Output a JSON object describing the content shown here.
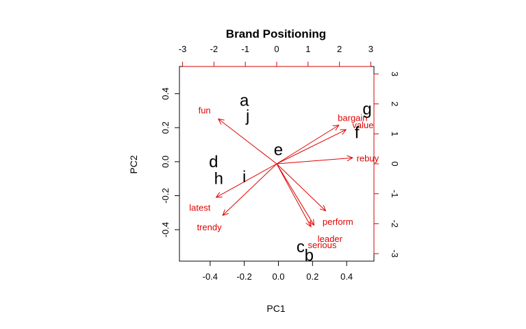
{
  "chart_data": {
    "type": "scatter",
    "subtype": "biplot",
    "title": "Brand Positioning",
    "xlabel": "PC1",
    "ylabel": "PC2",
    "xlim": [
      -0.58,
      0.56
    ],
    "ylim": [
      -0.585,
      0.56
    ],
    "x_ticks": [
      "-0.4",
      "-0.2",
      "0.0",
      "0.2",
      "0.4"
    ],
    "x_tick_values": [
      -0.4,
      -0.2,
      0.0,
      0.2,
      0.4
    ],
    "y_ticks": [
      "-0.4",
      "-0.2",
      "0.0",
      "0.2",
      "0.4"
    ],
    "y_tick_values": [
      -0.4,
      -0.2,
      0.0,
      0.2,
      0.4
    ],
    "top_ticks": [
      "-3",
      "-2",
      "-1",
      "0",
      "1",
      "2",
      "3"
    ],
    "top_tick_values": [
      -3,
      -2,
      -1,
      0,
      1,
      2,
      3
    ],
    "right_ticks": [
      "-3",
      "-2",
      "-1",
      "0",
      "1",
      "2",
      "3"
    ],
    "right_tick_values": [
      -3,
      -2,
      -1,
      0,
      1,
      2,
      3
    ],
    "top_xlim": [
      -3.1,
      3.1
    ],
    "right_ylim": [
      -3.25,
      3.25
    ],
    "point_color": "#000000",
    "loading_color": "#e00000",
    "points": [
      {
        "label": "a",
        "x": -0.2,
        "y": 0.36
      },
      {
        "label": "j",
        "x": -0.18,
        "y": 0.27
      },
      {
        "label": "g",
        "x": 0.52,
        "y": 0.31
      },
      {
        "label": "f",
        "x": 0.46,
        "y": 0.17
      },
      {
        "label": "e",
        "x": 0.0,
        "y": 0.07
      },
      {
        "label": "d",
        "x": -0.38,
        "y": 0.0
      },
      {
        "label": "h",
        "x": -0.35,
        "y": -0.1
      },
      {
        "label": "i",
        "x": -0.2,
        "y": -0.09
      },
      {
        "label": "c",
        "x": 0.13,
        "y": -0.5
      },
      {
        "label": "b",
        "x": 0.18,
        "y": -0.55
      }
    ],
    "loadings": [
      {
        "label": "fun",
        "x": -1.86,
        "y": 1.5,
        "label_x": -2.3,
        "label_y": 1.8
      },
      {
        "label": "bargain",
        "x": 1.98,
        "y": 1.29,
        "label_x": 2.42,
        "label_y": 1.55
      },
      {
        "label": "value",
        "x": 2.21,
        "y": 1.14,
        "label_x": 2.75,
        "label_y": 1.3
      },
      {
        "label": "rebuy",
        "x": 2.42,
        "y": 0.2,
        "label_x": 2.9,
        "label_y": 0.2
      },
      {
        "label": "latest",
        "x": -1.93,
        "y": -1.12,
        "label_x": -2.45,
        "label_y": -1.45
      },
      {
        "label": "trendy",
        "x": -1.72,
        "y": -1.72,
        "label_x": -2.15,
        "label_y": -2.1
      },
      {
        "label": "perform",
        "x": 1.56,
        "y": -1.57,
        "label_x": 1.95,
        "label_y": -1.92
      },
      {
        "label": "leader",
        "x": 1.19,
        "y": -2.05,
        "label_x": 1.7,
        "label_y": -2.5
      },
      {
        "label": "serious",
        "x": 1.09,
        "y": -2.1,
        "label_x": 1.45,
        "label_y": -2.7
      }
    ]
  }
}
